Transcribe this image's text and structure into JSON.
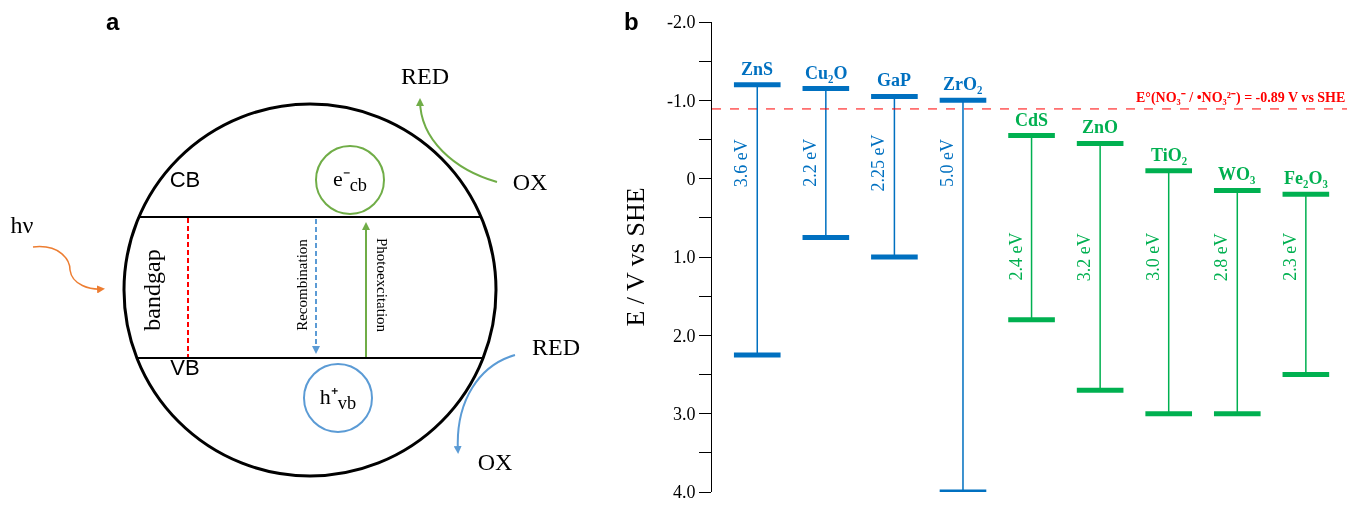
{
  "chart_data": [
    {
      "type": "other",
      "title": "a",
      "annotations": [
        "CB",
        "VB",
        "bandgap",
        "Recombination",
        "Photoexcitation",
        "e⁻$_{cb}$",
        "h⁺$_{vb}$",
        "hν",
        "RED",
        "OX",
        "RED",
        "OX"
      ]
    },
    {
      "type": "bar",
      "title": "b",
      "ylabel": "E / V vs SHE",
      "categories": [
        "ZnS",
        "Cu₂O",
        "GaP",
        "ZrO₂",
        "CdS",
        "ZnO",
        "TiO₂",
        "WO₃",
        "Fe₂O₃"
      ],
      "base": [
        -1.2,
        -1.15,
        -1.05,
        -1.0,
        -0.55,
        -0.45,
        -0.1,
        0.15,
        0.2
      ],
      "values": [
        3.45,
        1.9,
        2.05,
        5.0,
        2.35,
        3.15,
        3.1,
        2.85,
        2.3
      ],
      "annotations": [
        {
          "text": "3.6 eV",
          "x": "ZnS",
          "y": -0.2
        },
        {
          "text": "2.2 eV",
          "x": "Cu₂O",
          "y": -0.2
        },
        {
          "text": "2.25 eV",
          "x": "GaP",
          "y": -0.2
        },
        {
          "text": "5.0 eV",
          "x": "ZrO₂",
          "y": -0.2
        },
        {
          "text": "2.4 eV",
          "x": "CdS",
          "y": 1.0
        },
        {
          "text": "3.2 eV",
          "x": "ZnO",
          "y": 1.0
        },
        {
          "text": "3.0 eV",
          "x": "TiO₂",
          "y": 1.0
        },
        {
          "text": "2.8 eV",
          "x": "WO₃",
          "y": 1.0
        },
        {
          "text": "2.3 eV",
          "x": "Fe₂O₃",
          "y": 1.0
        }
      ],
      "colors": [
        "#0070c0",
        "#0070c0",
        "#0070c0",
        "#0070c0",
        "#00b050",
        "#00b050",
        "#00b050",
        "#00b050",
        "#00b050"
      ],
      "ylim": [
        4.0,
        -2.0
      ],
      "yticks": [
        {
          "value": -2,
          "label": "-2.0"
        },
        {
          "value": -1.5,
          "label": null
        },
        {
          "value": -1,
          "label": "-1.0"
        },
        {
          "value": -0.5,
          "label": null
        },
        0,
        {
          "value": 0.5,
          "label": null
        },
        {
          "value": 1,
          "label": "1.0"
        },
        {
          "value": 1.5,
          "label": null
        },
        {
          "value": 2,
          "label": "2.0"
        },
        {
          "value": 2.5,
          "label": null
        },
        {
          "value": 3,
          "label": "3.0"
        },
        {
          "value": 3.5,
          "label": null
        },
        {
          "value": 4,
          "label": "4.0"
        }
      ],
      "ref_lines": [
        {
          "axis": "y",
          "value": -0.89,
          "label": "E°(NO₃⁻ / •NO₃²⁻) = -0.89 V vs SHE",
          "color": "#ff0000",
          "line_style": "dashed"
        }
      ],
      "tick_labels": "y"
    }
  ]
}
